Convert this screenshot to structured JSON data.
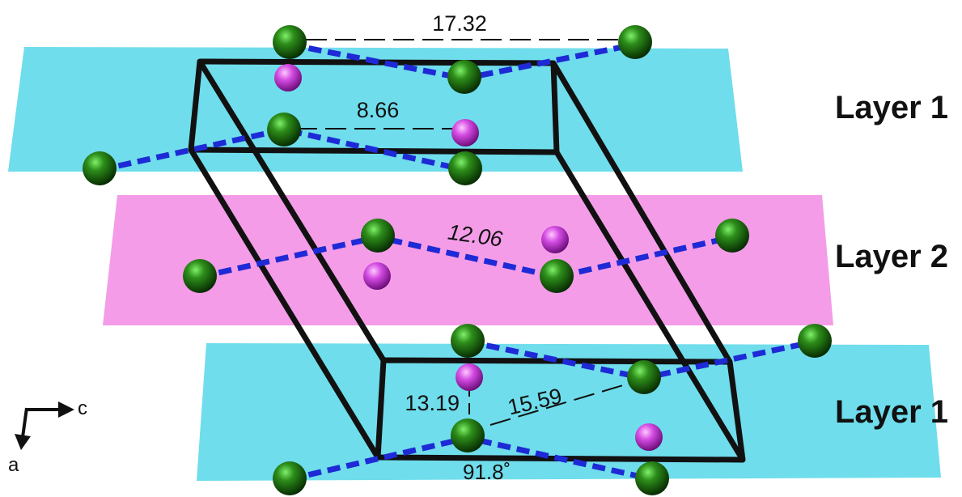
{
  "layers": {
    "top": "Layer 1",
    "middle": "Layer 2",
    "bottom": "Layer 1"
  },
  "distances": {
    "top_long": "17.32",
    "top_short": "8.66",
    "middle": "12.06",
    "bottom_vertical": "13.19",
    "bottom_diagonal": "15.59",
    "angle": "91.8˚"
  },
  "axes": {
    "c": "c",
    "a": "a"
  },
  "colors": {
    "layer1_plane": "#3fd2e6",
    "layer2_plane": "#f07be0",
    "green_atom": "#1f6e12",
    "magenta_atom": "#d23fe0",
    "chain": "#1e2ad6",
    "cell": "#111111"
  }
}
